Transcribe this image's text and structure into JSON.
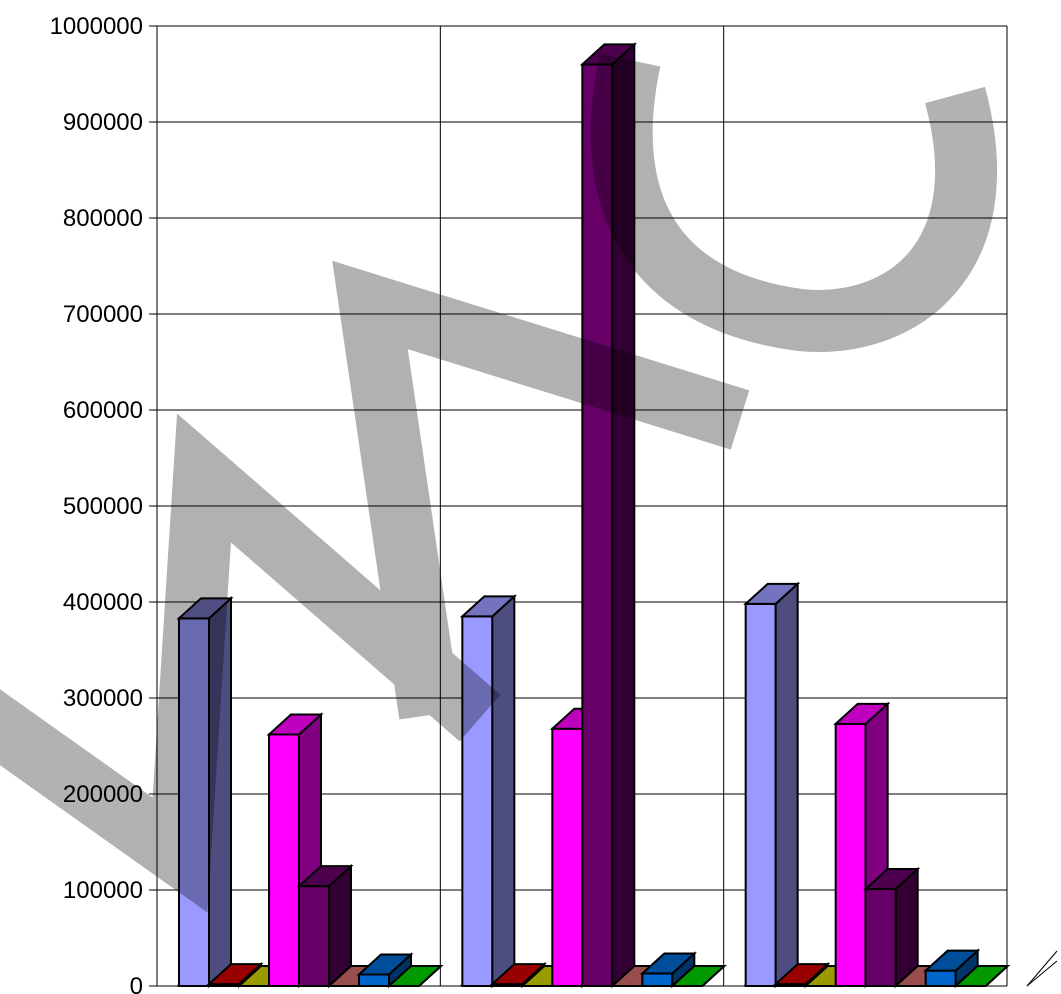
{
  "chart_data": {
    "type": "bar",
    "three_d": true,
    "title": "",
    "xlabel": "",
    "ylabel": "",
    "ylim": [
      0,
      1000000
    ],
    "yticks": [
      0,
      100000,
      200000,
      300000,
      400000,
      500000,
      600000,
      700000,
      800000,
      900000,
      1000000
    ],
    "ytick_labels": [
      "0",
      "100000",
      "200000",
      "300000",
      "400000",
      "500000",
      "600000",
      "700000",
      "800000",
      "900000",
      "1000000"
    ],
    "grid": true,
    "legend": "none",
    "categories": [
      "",
      "",
      ""
    ],
    "series": [
      {
        "color": "#9999ff",
        "values": [
          383000,
          385000,
          398000
        ]
      },
      {
        "color": "#cc0000",
        "values": [
          2000,
          2000,
          2000
        ]
      },
      {
        "color": "#cccc00",
        "values": [
          0,
          0,
          0
        ]
      },
      {
        "color": "#ff00ff",
        "values": [
          262000,
          268000,
          273000
        ]
      },
      {
        "color": "#660066",
        "values": [
          104000,
          960000,
          101000
        ]
      },
      {
        "color": "#cc6666",
        "values": [
          0,
          0,
          0
        ]
      },
      {
        "color": "#0066cc",
        "values": [
          12000,
          13000,
          16000
        ]
      },
      {
        "color": "#00cc00",
        "values": [
          0,
          0,
          0
        ]
      }
    ]
  },
  "watermark": {
    "text": "MAC",
    "color": "#000000"
  }
}
